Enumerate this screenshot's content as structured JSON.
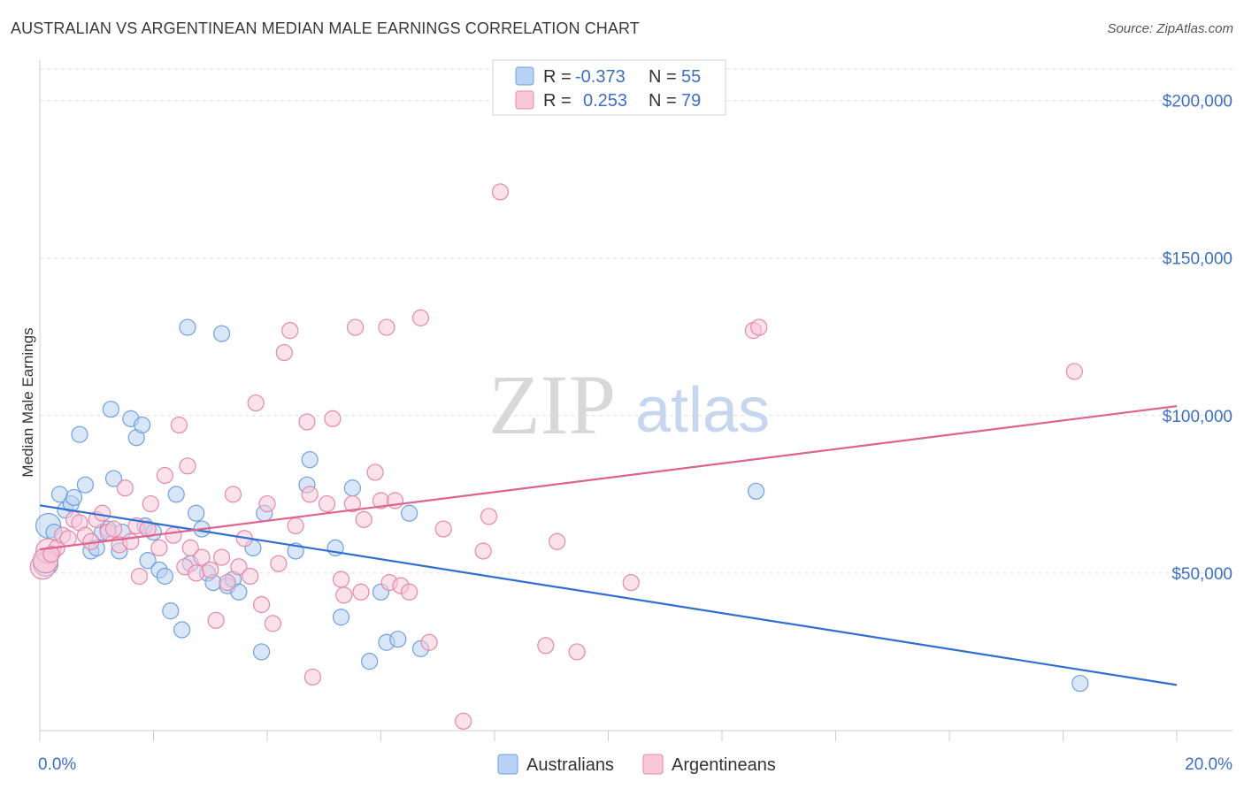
{
  "header": {
    "title": "AUSTRALIAN VS ARGENTINEAN MEDIAN MALE EARNINGS CORRELATION CHART",
    "source": "Source: ZipAtlas.com"
  },
  "watermark": {
    "zip": "ZIP",
    "atlas": "atlas"
  },
  "legend_box": {
    "rows": [
      {
        "r_label": "R =",
        "r_value": "-0.373",
        "n_label": "N =",
        "n_value": "55",
        "color": "#6fa0e4",
        "fill": "#b9d1f3"
      },
      {
        "r_label": "R =",
        "r_value": "0.253",
        "n_label": "N =",
        "n_value": "79",
        "color": "#e888a8",
        "fill": "#f8c8d8"
      }
    ]
  },
  "chart_data": {
    "type": "scatter",
    "xlabel": "",
    "ylabel": "Median Male Earnings",
    "xlim": [
      0,
      20
    ],
    "ylim": [
      0,
      210000
    ],
    "x_tick_labels": [
      "0.0%",
      "20.0%"
    ],
    "y_ticks": [
      50000,
      100000,
      150000,
      200000
    ],
    "y_tick_labels": [
      "$50,000",
      "$100,000",
      "$150,000",
      "$200,000"
    ],
    "grid": true,
    "legend_position": "bottom-center",
    "series": [
      {
        "name": "Australians",
        "color": "#6fa0e4",
        "fill": "#b9d1f3",
        "line_color": "#2f6fcf",
        "trend": {
          "x": [
            0,
            20
          ],
          "y": [
            71500,
            14500
          ]
        },
        "points": [
          [
            0.15,
            65000
          ],
          [
            0.25,
            63000
          ],
          [
            0.35,
            75000
          ],
          [
            0.45,
            70000
          ],
          [
            0.55,
            72000
          ],
          [
            0.6,
            74000
          ],
          [
            0.7,
            94000
          ],
          [
            0.8,
            78000
          ],
          [
            0.9,
            57000
          ],
          [
            1.0,
            58000
          ],
          [
            1.1,
            63000
          ],
          [
            1.2,
            64000
          ],
          [
            1.25,
            102000
          ],
          [
            1.3,
            80000
          ],
          [
            1.4,
            57000
          ],
          [
            1.45,
            63000
          ],
          [
            1.6,
            99000
          ],
          [
            1.7,
            93000
          ],
          [
            1.8,
            97000
          ],
          [
            1.85,
            65000
          ],
          [
            1.9,
            54000
          ],
          [
            2.0,
            63000
          ],
          [
            2.1,
            51000
          ],
          [
            2.2,
            49000
          ],
          [
            2.3,
            38000
          ],
          [
            2.4,
            75000
          ],
          [
            2.5,
            32000
          ],
          [
            2.6,
            128000
          ],
          [
            2.65,
            53000
          ],
          [
            2.75,
            69000
          ],
          [
            2.85,
            64000
          ],
          [
            2.95,
            50000
          ],
          [
            3.05,
            47000
          ],
          [
            3.2,
            126000
          ],
          [
            3.3,
            46000
          ],
          [
            3.4,
            48000
          ],
          [
            3.5,
            44000
          ],
          [
            3.75,
            58000
          ],
          [
            3.9,
            25000
          ],
          [
            3.95,
            69000
          ],
          [
            4.5,
            57000
          ],
          [
            4.7,
            78000
          ],
          [
            4.75,
            86000
          ],
          [
            5.2,
            58000
          ],
          [
            5.3,
            36000
          ],
          [
            5.5,
            77000
          ],
          [
            5.8,
            22000
          ],
          [
            6.0,
            44000
          ],
          [
            6.1,
            28000
          ],
          [
            6.3,
            29000
          ],
          [
            6.5,
            69000
          ],
          [
            6.7,
            26000
          ],
          [
            12.6,
            76000
          ],
          [
            18.3,
            15000
          ],
          [
            0.1,
            53000
          ]
        ]
      },
      {
        "name": "Argentineans",
        "color": "#e888a8",
        "fill": "#f8c8d8",
        "line_color": "#e0628e",
        "trend": {
          "x": [
            0,
            20
          ],
          "y": [
            57500,
            103000
          ]
        },
        "points": [
          [
            0.05,
            52000
          ],
          [
            0.15,
            57000
          ],
          [
            0.3,
            58000
          ],
          [
            0.4,
            62000
          ],
          [
            0.5,
            61000
          ],
          [
            0.6,
            67000
          ],
          [
            0.7,
            66000
          ],
          [
            0.8,
            62000
          ],
          [
            0.9,
            60000
          ],
          [
            1.0,
            67000
          ],
          [
            1.1,
            69000
          ],
          [
            1.2,
            63000
          ],
          [
            1.3,
            64000
          ],
          [
            1.4,
            59000
          ],
          [
            1.5,
            77000
          ],
          [
            1.6,
            60000
          ],
          [
            1.7,
            65000
          ],
          [
            1.75,
            49000
          ],
          [
            1.9,
            64000
          ],
          [
            1.95,
            72000
          ],
          [
            2.1,
            58000
          ],
          [
            2.2,
            81000
          ],
          [
            2.35,
            62000
          ],
          [
            2.45,
            97000
          ],
          [
            2.55,
            52000
          ],
          [
            2.6,
            84000
          ],
          [
            2.65,
            58000
          ],
          [
            2.75,
            50000
          ],
          [
            2.85,
            55000
          ],
          [
            3.0,
            51000
          ],
          [
            3.1,
            35000
          ],
          [
            3.2,
            55000
          ],
          [
            3.3,
            47000
          ],
          [
            3.4,
            75000
          ],
          [
            3.5,
            52000
          ],
          [
            3.6,
            61000
          ],
          [
            3.7,
            49000
          ],
          [
            3.8,
            104000
          ],
          [
            3.9,
            40000
          ],
          [
            4.0,
            72000
          ],
          [
            4.1,
            34000
          ],
          [
            4.2,
            53000
          ],
          [
            4.3,
            120000
          ],
          [
            4.4,
            127000
          ],
          [
            4.5,
            65000
          ],
          [
            4.7,
            98000
          ],
          [
            4.75,
            75000
          ],
          [
            4.8,
            17000
          ],
          [
            5.05,
            72000
          ],
          [
            5.15,
            99000
          ],
          [
            5.3,
            48000
          ],
          [
            5.35,
            43000
          ],
          [
            5.5,
            72000
          ],
          [
            5.55,
            128000
          ],
          [
            5.65,
            44000
          ],
          [
            5.7,
            67000
          ],
          [
            5.9,
            82000
          ],
          [
            6.0,
            73000
          ],
          [
            6.1,
            128000
          ],
          [
            6.15,
            47000
          ],
          [
            6.25,
            73000
          ],
          [
            6.35,
            46000
          ],
          [
            6.5,
            44000
          ],
          [
            6.7,
            131000
          ],
          [
            6.85,
            28000
          ],
          [
            7.1,
            64000
          ],
          [
            7.45,
            3000
          ],
          [
            7.8,
            57000
          ],
          [
            7.9,
            68000
          ],
          [
            8.1,
            171000
          ],
          [
            8.9,
            27000
          ],
          [
            9.1,
            60000
          ],
          [
            9.45,
            25000
          ],
          [
            10.4,
            47000
          ],
          [
            12.55,
            127000
          ],
          [
            12.65,
            128000
          ],
          [
            18.2,
            114000
          ],
          [
            0.1,
            54000
          ],
          [
            0.2,
            56000
          ]
        ]
      }
    ]
  }
}
